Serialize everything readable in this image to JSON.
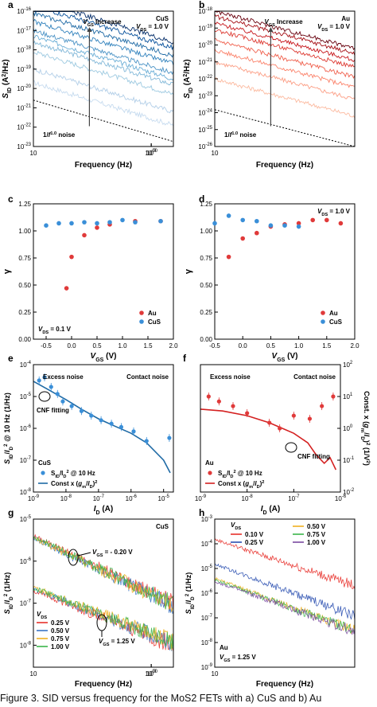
{
  "caption": "Figure 3. SID versus frequency for the MoS2 FETs with a) CuS and b) Au",
  "chart_data": [
    {
      "panel": "a",
      "type": "line",
      "xlabel": "Frequency (Hz)",
      "ylabel": "SID (A²/Hz)",
      "xscale": "log",
      "yscale": "log",
      "xlim": [
        10,
        1600
      ],
      "ylim": [
        1e-23,
        1e-16
      ],
      "xticks": [
        "10",
        "100",
        "1000"
      ],
      "yticks": [
        "10-23",
        "10-22",
        "10-21",
        "10-20",
        "10-19",
        "10-18",
        "10-17",
        "10-16"
      ],
      "legend": "top-right",
      "annotations": [
        "CuS",
        "VDS = 1.0 V",
        "VGS Increase",
        "1/f1.0 noise"
      ],
      "series_colors": [
        "#c6dbef",
        "#b3cfe8",
        "#9ecae1",
        "#84b9d9",
        "#6baed6",
        "#4d94c6",
        "#3182bd",
        "#1f6aa5",
        "#08519c",
        "#08306b"
      ],
      "series_start": [
        2e-20,
        1e-19,
        8e-19,
        2.5e-18,
        5e-18,
        1e-17,
        3e-17,
        8e-17,
        2e-16,
        4e-16
      ],
      "slope": -1.0,
      "reference_line": {
        "from": [
          10,
          2.5e-21
        ],
        "to": [
          1600,
          1.8e-23
        ]
      }
    },
    {
      "panel": "b",
      "type": "line",
      "xlabel": "Frequency (Hz)",
      "ylabel": "SID (A²/Hz)",
      "xscale": "log",
      "yscale": "log",
      "xlim": [
        10,
        1600
      ],
      "ylim": [
        1e-26,
        1e-18
      ],
      "xticks": [
        "10",
        "100",
        "1000"
      ],
      "yticks": [
        "10-26",
        "10-25",
        "10-24",
        "10-23",
        "10-22",
        "10-21",
        "10-20",
        "10-19",
        "10-18"
      ],
      "legend": "top-right",
      "annotations": [
        "Au",
        "VDS = 1.0 V",
        "VGS Increase",
        "1/f1.0 noise"
      ],
      "series_colors": [
        "#fcbba1",
        "#fc9f86",
        "#fb826a",
        "#f0604d",
        "#dd3b33",
        "#c7181d",
        "#a50f15",
        "#67000d"
      ],
      "series_start": [
        1e-22,
        1e-21,
        5e-21,
        2e-20,
        8e-20,
        2e-19,
        5e-19,
        1e-18
      ],
      "slope": -1.0,
      "reference_line": {
        "from": [
          10,
          1.5e-24
        ],
        "to": [
          1600,
          1e-26
        ]
      }
    },
    {
      "panel": "c",
      "type": "scatter",
      "xlabel": "VGS (V)",
      "ylabel": "γ",
      "xlim": [
        -0.75,
        2.0
      ],
      "ylim": [
        0.0,
        1.25
      ],
      "xticks": [
        "-0.5",
        "0.0",
        "0.5",
        "1.0",
        "1.5",
        "2.0"
      ],
      "yticks": [
        "0.00",
        "0.25",
        "0.50",
        "0.75",
        "1.00",
        "1.25"
      ],
      "annotations": [
        "VDS = 0.1 V"
      ],
      "legend": "bottom-right",
      "series": [
        {
          "name": "Au",
          "color": "#e03a3a",
          "x": [
            -0.1,
            0.0,
            0.25,
            0.5,
            0.75,
            1.25,
            1.75
          ],
          "y": [
            0.47,
            0.76,
            0.96,
            1.03,
            1.06,
            1.09,
            1.09
          ]
        },
        {
          "name": "CuS",
          "color": "#3a8fd8",
          "x": [
            -0.5,
            -0.25,
            0.0,
            0.25,
            0.5,
            0.75,
            1.0,
            1.25,
            1.75
          ],
          "y": [
            1.05,
            1.07,
            1.07,
            1.08,
            1.07,
            1.08,
            1.1,
            1.08,
            1.09
          ]
        }
      ]
    },
    {
      "panel": "d",
      "type": "scatter",
      "xlabel": "VGS (V)",
      "ylabel": "γ",
      "xlim": [
        -0.5,
        2.0
      ],
      "ylim": [
        0.0,
        1.25
      ],
      "xticks": [
        "-0.5",
        "0.0",
        "0.5",
        "1.0",
        "1.5",
        "2.0"
      ],
      "yticks": [
        "0.00",
        "0.25",
        "0.50",
        "0.75",
        "1.00",
        "1.25"
      ],
      "annotations": [
        "VDS = 1.0 V"
      ],
      "legend": "bottom-right",
      "series": [
        {
          "name": "Au",
          "color": "#e03a3a",
          "x": [
            -0.25,
            0.0,
            0.25,
            0.5,
            0.75,
            1.0,
            1.25,
            1.5,
            1.75
          ],
          "y": [
            0.76,
            0.93,
            0.98,
            1.04,
            1.06,
            1.07,
            1.1,
            1.1,
            1.07
          ]
        },
        {
          "name": "CuS",
          "color": "#3a8fd8",
          "x": [
            -0.5,
            -0.25,
            0.0,
            0.25,
            0.5,
            0.75,
            1.0
          ],
          "y": [
            1.07,
            1.14,
            1.1,
            1.09,
            1.05,
            1.05,
            1.04
          ]
        }
      ]
    },
    {
      "panel": "e",
      "type": "scatter",
      "xlabel": "ID (A)",
      "ylabel": "SID/ID² @ 10 Hz (1/Hz)",
      "xscale": "log",
      "yscale": "log",
      "xlim": [
        1e-09,
        2e-05
      ],
      "ylim": [
        1e-08,
        0.0001
      ],
      "xticks": [
        "10-9",
        "10-8",
        "10-7",
        "10-6",
        "10-5"
      ],
      "yticks": [
        "10-8",
        "10-7",
        "10-6",
        "10-5",
        "10-4"
      ],
      "annotations": [
        "Excess noise",
        "Contact noise",
        "CNF fitting",
        "CuS"
      ],
      "legend_entries": [
        "SID/ID² @ 10 Hz",
        "Const x (gm/ID)²"
      ],
      "points": {
        "color": "#3a8fd8",
        "x": [
          1.5e-09,
          2.2e-09,
          3.5e-09,
          5.5e-09,
          8e-09,
          1.5e-08,
          3e-08,
          6e-08,
          1.2e-07,
          2.5e-07,
          5e-07,
          1.2e-06,
          3e-06,
          1.5e-05
        ],
        "y": [
          3.2e-05,
          4e-05,
          2e-05,
          1.2e-05,
          7e-06,
          5e-06,
          3.5e-06,
          2.5e-06,
          1.8e-06,
          1.4e-06,
          1.1e-06,
          8e-07,
          4e-07,
          5e-07
        ]
      },
      "fit": {
        "color": "#1f6aa5",
        "x": [
          1e-09,
          3e-09,
          1e-08,
          3e-08,
          1e-07,
          3e-07,
          1e-06,
          3e-06,
          1e-05,
          1.6e-05
        ],
        "y": [
          3e-05,
          1.6e-05,
          8e-06,
          4e-06,
          2e-06,
          1.2e-06,
          7e-07,
          3.5e-07,
          1e-07,
          4e-08
        ]
      }
    },
    {
      "panel": "f",
      "type": "scatter",
      "xlabel": "ID (A)",
      "ylabel": "Const. x (gm/ID)² (1/V²)",
      "xscale": "log",
      "yscale": "log",
      "xlim": [
        1e-09,
        1e-06
      ],
      "ylim": [
        0.01,
        100.0
      ],
      "xticks": [
        "10-9",
        "10-8",
        "10-7",
        "10-6"
      ],
      "yticks": [
        "10-2",
        "10-1",
        "100",
        "101",
        "102"
      ],
      "annotations": [
        "Excess noise",
        "Contact noise",
        "CNF fitting",
        "Au"
      ],
      "legend_entries": [
        "SID/ID² @ 10 Hz",
        "Const x (gm/ID)²"
      ],
      "points": {
        "color": "#e03a3a",
        "x": [
          1.5e-09,
          2.5e-09,
          5e-09,
          1e-08,
          3e-08,
          5e-08,
          1e-07,
          2.2e-07,
          4e-07,
          7e-07
        ],
        "y": [
          10,
          7,
          5,
          3,
          1.5,
          1,
          2.5,
          2,
          5,
          10
        ]
      },
      "fit": {
        "color": "#d42020",
        "x": [
          1e-09,
          3e-09,
          1e-08,
          3e-08,
          1e-07,
          2e-07,
          3e-07,
          4.5e-07,
          6e-07,
          8e-07
        ],
        "y": [
          4,
          3.5,
          2.5,
          1.5,
          0.7,
          0.35,
          0.15,
          0.08,
          0.12,
          0.05
        ]
      }
    },
    {
      "panel": "g",
      "type": "line",
      "xlabel": "Frequency (Hz)",
      "ylabel": "SID/ID² (1/Hz)",
      "xscale": "log",
      "yscale": "log",
      "xlim": [
        10,
        1600
      ],
      "ylim": [
        3e-09,
        1e-05
      ],
      "xticks": [
        "10",
        "100",
        "1000"
      ],
      "yticks": [
        "10-8",
        "10-7",
        "10-6",
        "10-5"
      ],
      "annotations": [
        "CuS",
        "VGS = - 0.20 V",
        "VGS = 1.25 V"
      ],
      "legend_title": "VDS",
      "series": [
        {
          "name": "0.25 V",
          "color": "#e8302a",
          "high": 4e-06,
          "low": 2e-07
        },
        {
          "name": "0.50 V",
          "color": "#3a75c4",
          "high": 3.5e-06,
          "low": 2.2e-07
        },
        {
          "name": "0.75 V",
          "color": "#f0b020",
          "high": 3.6e-06,
          "low": 2.4e-07
        },
        {
          "name": "1.00 V",
          "color": "#3ab54a",
          "high": 3.8e-06,
          "low": 2.3e-07
        }
      ]
    },
    {
      "panel": "h",
      "type": "line",
      "xlabel": "Frequency (Hz)",
      "ylabel": "SID/ID² (1/Hz)",
      "xscale": "log",
      "yscale": "log",
      "xlim": [
        10,
        1600
      ],
      "ylim": [
        1e-09,
        0.001
      ],
      "xticks": [
        "10",
        "100",
        "1000"
      ],
      "yticks": [
        "10-9",
        "10-8",
        "10-7",
        "10-6",
        "10-5",
        "10-4",
        "10-3"
      ],
      "annotations": [
        "Au",
        "VGS = 1.25 V"
      ],
      "legend_title": "VDS",
      "series": [
        {
          "name": "0.10 V",
          "color": "#e8302a",
          "start": 0.00015,
          "end": 2e-06
        },
        {
          "name": "0.25 V",
          "color": "#2a4fb0",
          "start": 1.5e-05,
          "end": 1.2e-07
        },
        {
          "name": "0.50 V",
          "color": "#f0b020",
          "start": 4e-06,
          "end": 3e-08
        },
        {
          "name": "0.75 V",
          "color": "#3ab54a",
          "start": 3.5e-06,
          "end": 3e-08
        },
        {
          "name": "1.00 V",
          "color": "#7a4aa0",
          "start": 3e-06,
          "end": 2.8e-08
        }
      ]
    }
  ]
}
